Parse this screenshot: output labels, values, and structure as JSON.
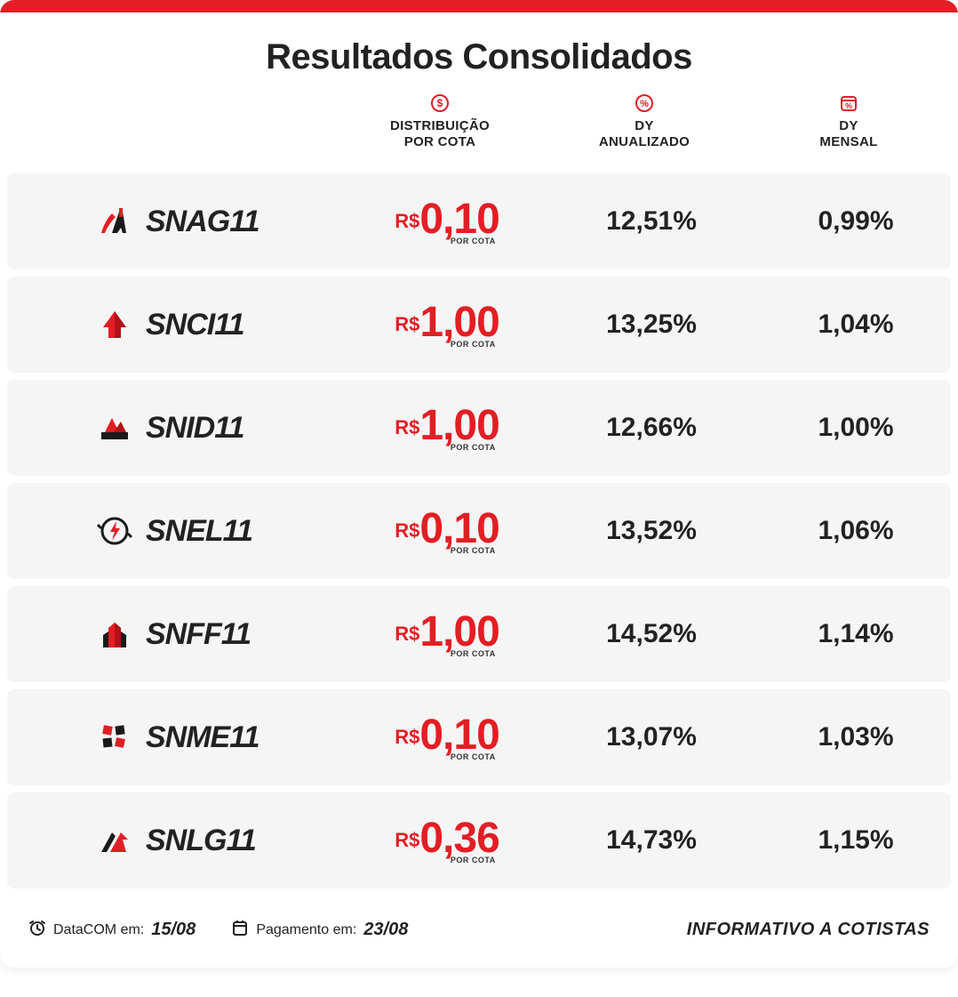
{
  "colors": {
    "accent": "#e31e24",
    "text": "#222222",
    "row_bg": "#f5f5f5",
    "card_bg": "#ffffff"
  },
  "title": "Resultados Consolidados",
  "columns": {
    "distribution": {
      "label_line1": "DISTRIBUIÇÃO",
      "label_line2": "POR COTA",
      "icon": "dollar-circle-icon"
    },
    "dy_annual": {
      "label_line1": "DY",
      "label_line2": "ANUALIZADO",
      "icon": "percent-circle-icon"
    },
    "dy_monthly": {
      "label_line1": "DY",
      "label_line2": "MENSAL",
      "icon": "calendar-percent-icon"
    }
  },
  "distribution_prefix": "R$",
  "distribution_sublabel": "POR COTA",
  "rows": [
    {
      "ticker": "SNAG11",
      "icon": "snag-icon",
      "distribution": "0,10",
      "dy_annual": "12,51%",
      "dy_monthly": "0,99%"
    },
    {
      "ticker": "SNCI11",
      "icon": "snci-icon",
      "distribution": "1,00",
      "dy_annual": "13,25%",
      "dy_monthly": "1,04%"
    },
    {
      "ticker": "SNID11",
      "icon": "snid-icon",
      "distribution": "1,00",
      "dy_annual": "12,66%",
      "dy_monthly": "1,00%"
    },
    {
      "ticker": "SNEL11",
      "icon": "snel-icon",
      "distribution": "0,10",
      "dy_annual": "13,52%",
      "dy_monthly": "1,06%"
    },
    {
      "ticker": "SNFF11",
      "icon": "snff-icon",
      "distribution": "1,00",
      "dy_annual": "14,52%",
      "dy_monthly": "1,14%"
    },
    {
      "ticker": "SNME11",
      "icon": "snme-icon",
      "distribution": "0,10",
      "dy_annual": "13,07%",
      "dy_monthly": "1,03%"
    },
    {
      "ticker": "SNLG11",
      "icon": "snlg-icon",
      "distribution": "0,36",
      "dy_annual": "14,73%",
      "dy_monthly": "1,15%"
    }
  ],
  "footer": {
    "datacom_label": "DataCOM em:",
    "datacom_value": "15/08",
    "payment_label": "Pagamento em:",
    "payment_value": "23/08",
    "right_text": "INFORMATIVO A COTISTAS"
  }
}
